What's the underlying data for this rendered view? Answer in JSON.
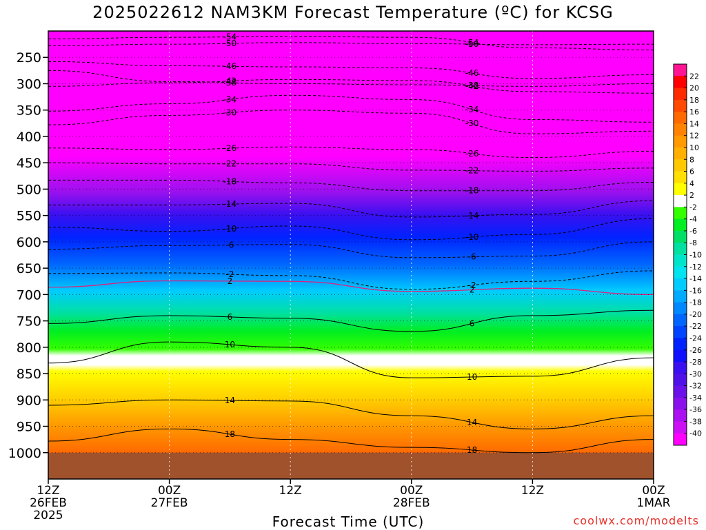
{
  "title": "2025022612 NAM3KM Forecast Temperature (ºC) for KCSG",
  "credit": "coolwx.com/modelts",
  "chart_data": {
    "type": "heatmap",
    "title": "2025022612 NAM3KM Forecast Temperature (ºC) for KCSG",
    "xlabel": "Forecast Time (UTC)",
    "ylabel": "",
    "x_forecast_hours": [
      0,
      60
    ],
    "x_ticks": [
      {
        "hour": 0,
        "lines": [
          "12Z",
          "26FEB",
          "2025"
        ]
      },
      {
        "hour": 12,
        "lines": [
          "00Z",
          "27FEB"
        ]
      },
      {
        "hour": 24,
        "lines": [
          "12Z"
        ]
      },
      {
        "hour": 36,
        "lines": [
          "00Z",
          "28FEB"
        ]
      },
      {
        "hour": 48,
        "lines": [
          "12Z"
        ]
      },
      {
        "hour": 60,
        "lines": [
          "00Z",
          "1MAR"
        ]
      }
    ],
    "y_ticks": [
      250,
      300,
      350,
      400,
      450,
      500,
      550,
      600,
      650,
      700,
      750,
      800,
      850,
      900,
      950,
      1000
    ],
    "y_range_hPa": [
      200,
      1050
    ],
    "surface_pressure_hPa": 1000,
    "colorbar_ticks": [
      22,
      20,
      18,
      16,
      14,
      12,
      10,
      8,
      6,
      4,
      2,
      -2,
      -4,
      -6,
      -8,
      -10,
      -12,
      -14,
      -16,
      -18,
      -20,
      -22,
      -24,
      -26,
      -28,
      -30,
      -32,
      -34,
      -36,
      -38,
      -40
    ],
    "colorbar_colors": [
      "#ff1493",
      "#ff0000",
      "#ff2a00",
      "#ff4a00",
      "#ff6a00",
      "#ff8200",
      "#ff9a00",
      "#ffb000",
      "#ffc800",
      "#ffe000",
      "#ffff00",
      "#ffffff",
      "#33ff00",
      "#00ee22",
      "#00e066",
      "#00e0a0",
      "#00e4cc",
      "#00e4f0",
      "#00ccff",
      "#00aaff",
      "#0088ff",
      "#0066ff",
      "#0044ff",
      "#0022ff",
      "#1010ff",
      "#3a10f0",
      "#5010e8",
      "#6a10e8",
      "#8a10ee",
      "#aa10f0",
      "#cc10f4",
      "#ff00ff"
    ],
    "contour_lines": [
      {
        "label": "-50",
        "levels_hPa": [
          228,
          225,
          222,
          224,
          226,
          225
        ]
      },
      {
        "label": "-54",
        "levels_hPa": [
          215,
          212,
          210,
          212,
          232,
          236
        ]
      },
      {
        "label": "-46",
        "levels_hPa": [
          258,
          266,
          268,
          270,
          290,
          283
        ]
      },
      {
        "label": "-42",
        "levels_hPa": [
          305,
          298,
          292,
          294,
          315,
          318
        ]
      },
      {
        "label": "-38",
        "levels_hPa": [
          275,
          296,
          300,
          302,
          305,
          300
        ]
      },
      {
        "label": "-34",
        "levels_hPa": [
          352,
          338,
          322,
          330,
          368,
          373
        ]
      },
      {
        "label": "-30",
        "levels_hPa": [
          378,
          360,
          350,
          356,
          395,
          390
        ]
      },
      {
        "label": "-26",
        "levels_hPa": [
          422,
          425,
          420,
          425,
          440,
          428
        ]
      },
      {
        "label": "-22",
        "levels_hPa": [
          450,
          452,
          452,
          464,
          466,
          460
        ]
      },
      {
        "label": "-18",
        "levels_hPa": [
          483,
          483,
          488,
          503,
          503,
          487
        ]
      },
      {
        "label": "-14",
        "levels_hPa": [
          530,
          530,
          527,
          553,
          548,
          522
        ]
      },
      {
        "label": "-10",
        "levels_hPa": [
          572,
          580,
          570,
          596,
          586,
          556
        ]
      },
      {
        "label": "-6",
        "levels_hPa": [
          614,
          607,
          605,
          630,
          627,
          600
        ]
      },
      {
        "label": "-2",
        "levels_hPa": [
          660,
          659,
          664,
          690,
          675,
          655
        ]
      },
      {
        "label": "2",
        "levels_hPa": [
          686,
          674,
          675,
          694,
          688,
          700
        ]
      },
      {
        "label": "6",
        "levels_hPa": [
          755,
          740,
          745,
          770,
          740,
          730
        ]
      },
      {
        "label": "10",
        "levels_hPa": [
          830,
          790,
          800,
          858,
          855,
          820
        ]
      },
      {
        "label": "14",
        "levels_hPa": [
          910,
          900,
          902,
          930,
          955,
          930
        ]
      },
      {
        "label": "18",
        "levels_hPa": [
          978,
          955,
          975,
          990,
          1000,
          975
        ]
      }
    ]
  }
}
